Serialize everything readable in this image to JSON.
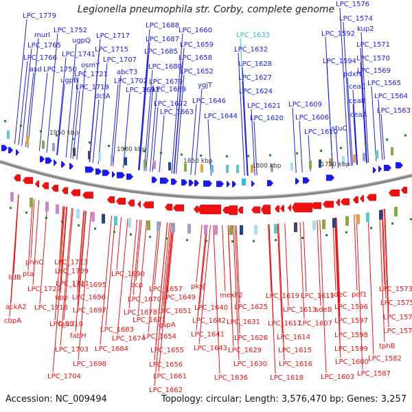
{
  "title": "Legionella pneumophila str. Corby, complete genome",
  "footer": {
    "accession": "Accession: NC_009494",
    "topology": "Topology: circular; Length: 3,576,470 bp; Genes: 3,257"
  },
  "colors": {
    "forward": "#1a1aee",
    "reverse": "#ee1111",
    "highlight": "#33bbdd",
    "backbone": "#888888"
  },
  "scale_labels": [
    "1950 kbp",
    "1900 kbp",
    "1850 kbp",
    "1800 kbp",
    "1750 kbp"
  ],
  "top_genes": [
    {
      "label": "LPC_1779",
      "hl": false
    },
    {
      "label": "murI",
      "hl": false
    },
    {
      "label": "LPC_1765",
      "hl": false
    },
    {
      "label": "LPC_1766",
      "hl": false
    },
    {
      "label": "asd",
      "hl": false
    },
    {
      "label": "LPC_1752",
      "hl": false
    },
    {
      "label": "ugpQ",
      "hl": false
    },
    {
      "label": "LPC_1741",
      "hl": false
    },
    {
      "label": "LPC_1750",
      "hl": false
    },
    {
      "label": "ugpB",
      "hl": false
    },
    {
      "label": "osmY",
      "hl": false
    },
    {
      "label": "LPC_1721",
      "hl": false
    },
    {
      "label": "LPC_1719",
      "hl": false
    },
    {
      "label": "dctA",
      "hl": false
    },
    {
      "label": "LPC_1717",
      "hl": false
    },
    {
      "label": "LPC_1715",
      "hl": false
    },
    {
      "label": "LPC_1707",
      "hl": false
    },
    {
      "label": "abcT3",
      "hl": false
    },
    {
      "label": "LPC_1702",
      "hl": false
    },
    {
      "label": "LPC_1693",
      "hl": false
    },
    {
      "label": "LPC_1688",
      "hl": false
    },
    {
      "label": "LPC_1687",
      "hl": false
    },
    {
      "label": "LPC_1685",
      "hl": false
    },
    {
      "label": "LPC_1680",
      "hl": false
    },
    {
      "label": "LPC_1679",
      "hl": false
    },
    {
      "label": "LPC_1669",
      "hl": false
    },
    {
      "label": "LPC_1672",
      "hl": false
    },
    {
      "label": "LPC_1663",
      "hl": false
    },
    {
      "label": "LPC_1660",
      "hl": false
    },
    {
      "label": "LPC_1659",
      "hl": false
    },
    {
      "label": "LPC_1658",
      "hl": false
    },
    {
      "label": "LPC_1652",
      "hl": false
    },
    {
      "label": "ygjT",
      "hl": false
    },
    {
      "label": "LPC_1646",
      "hl": false
    },
    {
      "label": "LPC_1644",
      "hl": false
    },
    {
      "label": "LPC_1633",
      "hl": true
    },
    {
      "label": "LPC_1632",
      "hl": false
    },
    {
      "label": "LPC_1628",
      "hl": false
    },
    {
      "label": "LPC_1627",
      "hl": false
    },
    {
      "label": "LPC_1624",
      "hl": false
    },
    {
      "label": "LPC_1621",
      "hl": false
    },
    {
      "label": "LPC_1620",
      "hl": false
    },
    {
      "label": "LPC_1609",
      "hl": false
    },
    {
      "label": "LPC_1606",
      "hl": false
    },
    {
      "label": "LPC_1610",
      "hl": false
    },
    {
      "label": "LPC_1576",
      "hl": false
    },
    {
      "label": "LPC_1574",
      "hl": false
    },
    {
      "label": "LPC_1592",
      "hl": false
    },
    {
      "label": "kup2",
      "hl": false
    },
    {
      "label": "LPC_1571",
      "hl": false
    },
    {
      "label": "LPC_1594",
      "hl": false
    },
    {
      "label": "LPC_1570",
      "hl": false
    },
    {
      "label": "pdxH",
      "hl": false
    },
    {
      "label": "LPC_1569",
      "hl": false
    },
    {
      "label": "LPC_1565",
      "hl": false
    },
    {
      "label": "ceaC",
      "hl": false
    },
    {
      "label": "LPC_1564",
      "hl": false
    },
    {
      "label": "ceaB",
      "hl": false
    },
    {
      "label": "LPC_1563",
      "hl": false
    },
    {
      "label": "ceaA",
      "hl": false
    },
    {
      "label": "stuC",
      "hl": false
    }
  ],
  "bottom_genes": [
    "lidB",
    "phhC",
    "pta",
    "LPC_1713",
    "LPC_1727",
    "LPC_1709",
    "ackA2",
    "LPC_1711",
    "LPC_1695",
    "LPC_1690",
    "cbpA",
    "LPC_1716",
    "upp",
    "LPC_1696",
    "LPC_1710",
    "LPC_1697",
    "fabG",
    "fabH",
    "LPC_1703",
    "LPC_1698",
    "LPC_1704",
    "bcp",
    "LPC_1670",
    "LPC_1678",
    "LPC_1683",
    "LPC_1684",
    "LPC_1671",
    "LPC_1674",
    "LPC_1657",
    "LPC_1649",
    "LPC_1651",
    "gspA",
    "LPC_1654",
    "LPC_1655",
    "LPC_1656",
    "LPC_1661",
    "LPC_1662",
    "pksJ",
    "LPC_1640",
    "LPC_1642",
    "LPC_1641",
    "LPC_1643",
    "mexF2",
    "LPC_1625",
    "LPC_1631",
    "LPC_1626",
    "LPC_1629",
    "LPC_1630",
    "LPC_1636",
    "LPC_1619",
    "LPC_1617",
    "LPC_1613",
    "LPC_1614",
    "LPC_1615",
    "LPC_1616",
    "LPC_1618",
    "LPC_1611",
    "LPC_1607",
    "sdeB",
    "sdeC",
    "LPC_1596",
    "LPC_1597",
    "LPC_1598",
    "LPC_1599",
    "LPC_1600",
    "LPC_1603",
    "pof1",
    "LPC_1573",
    "LPC_1575",
    "LPC_1577",
    "LPC_1578",
    "LPC_1587",
    "tphB",
    "LPC_1582"
  ]
}
